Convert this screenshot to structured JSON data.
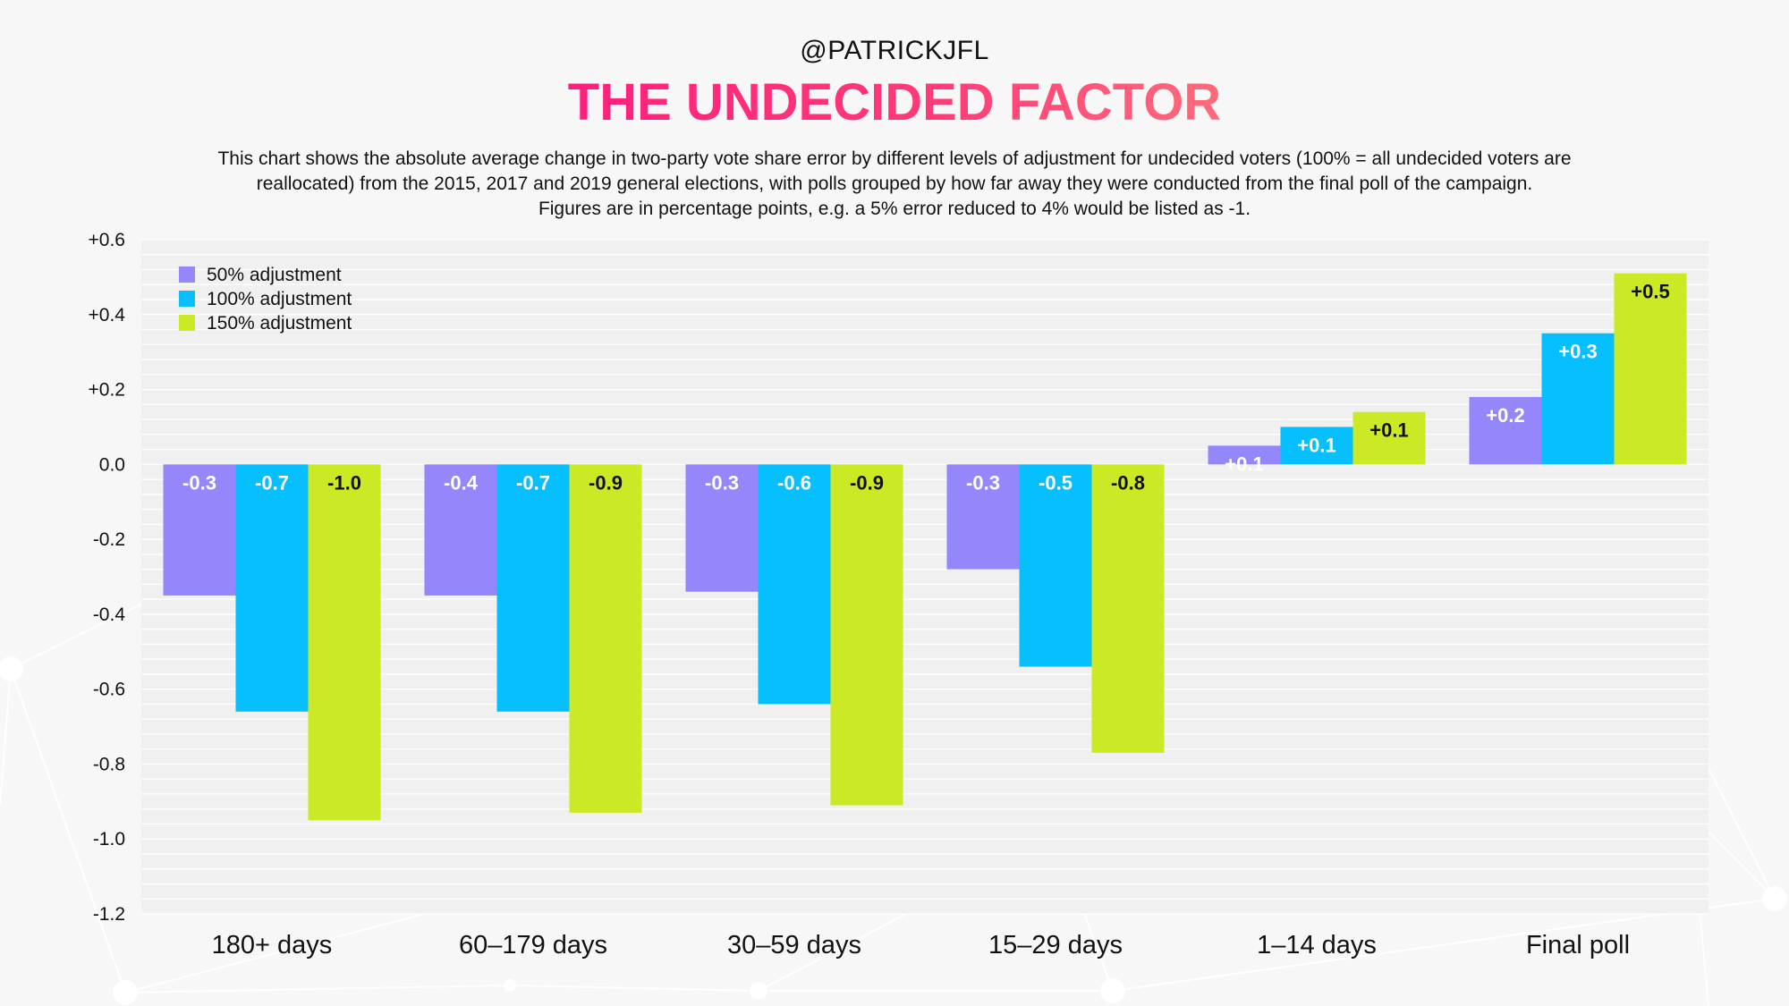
{
  "header": {
    "handle": "@PATRICKJFL",
    "title": "THE UNDECIDED FACTOR",
    "subtitle_lines": [
      "This chart shows the absolute average change in two-party vote share error by different levels of adjustment for undecided voters (100% = all undecided voters are",
      "reallocated) from the 2015, 2017 and 2019 general elections, with polls grouped by how far away they were conducted from the final poll of the campaign.",
      "Figures are in percentage points, e.g. a 5% error reduced to 4% would be listed as -1."
    ]
  },
  "chart_data": {
    "type": "bar",
    "categories": [
      "180+ days",
      "60–179 days",
      "30–59 days",
      "15–29 days",
      "1–14 days",
      "Final poll"
    ],
    "series": [
      {
        "name": "50% adjustment",
        "color": "#9486fb",
        "label_color": "#ffffff",
        "values": [
          -0.35,
          -0.35,
          -0.34,
          -0.28,
          0.05,
          0.18
        ],
        "labels": [
          "-0.3",
          "-0.4",
          "-0.3",
          "-0.3",
          "+0.1",
          "+0.2"
        ]
      },
      {
        "name": "100% adjustment",
        "color": "#06bffc",
        "label_color": "#ffffff",
        "values": [
          -0.66,
          -0.66,
          -0.64,
          -0.54,
          0.1,
          0.35
        ],
        "labels": [
          "-0.7",
          "-0.7",
          "-0.6",
          "-0.5",
          "+0.1",
          "+0.3"
        ]
      },
      {
        "name": "150% adjustment",
        "color": "#cbe924",
        "label_color": "#111111",
        "values": [
          -0.95,
          -0.93,
          -0.91,
          -0.77,
          0.14,
          0.51
        ],
        "labels": [
          "-1.0",
          "-0.9",
          "-0.9",
          "-0.8",
          "+0.1",
          "+0.5"
        ]
      }
    ],
    "ylim": [
      -1.2,
      0.6
    ],
    "yticks": [
      0.6,
      0.4,
      0.2,
      0.0,
      -0.2,
      -0.4,
      -0.6,
      -0.8,
      -1.0,
      -1.2
    ],
    "ytick_labels": [
      "+0.6",
      "+0.4",
      "+0.2",
      "0.0",
      "-0.2",
      "-0.4",
      "-0.6",
      "-0.8",
      "-1.0",
      "-1.2"
    ],
    "legend_position": "top-left",
    "grid": true
  }
}
